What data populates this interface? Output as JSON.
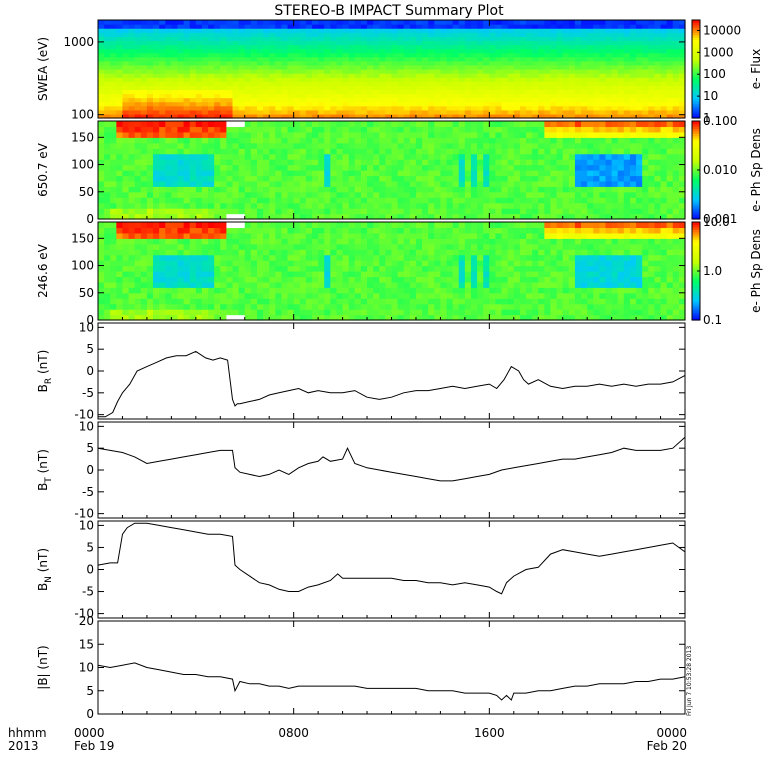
{
  "title": "STEREO-B IMPACT Summary Plot",
  "stamp": "Fri Jun  7 10:53:28 2013",
  "footer": {
    "time_units": "hhmm",
    "year": "2013",
    "x_ticks": [
      {
        "t": 0,
        "time": "0000",
        "date": "Feb 19"
      },
      {
        "t": 8,
        "time": "0800",
        "date": ""
      },
      {
        "t": 16,
        "time": "1600",
        "date": ""
      },
      {
        "t": 24,
        "time": "0000",
        "date": "Feb 20"
      }
    ]
  },
  "colors": {
    "rainbow": [
      "#0000ff",
      "#00c8ff",
      "#00ff64",
      "#c8ff00",
      "#ffff00",
      "#ff0000"
    ]
  },
  "chart_data": [
    {
      "type": "heatmap",
      "id": "swea",
      "ylabel": "SWEA (eV)",
      "y_scale": "log",
      "ylim": [
        90,
        2000
      ],
      "y_ticks": [
        {
          "v": 100,
          "label": "100"
        },
        {
          "v": 1000,
          "label": "1000"
        }
      ],
      "colorbar": {
        "label": "e- Flux",
        "scale": "log",
        "range": [
          1,
          30000
        ],
        "ticks": [
          {
            "v": 1,
            "label": "1"
          },
          {
            "v": 10,
            "label": "10"
          },
          {
            "v": 100,
            "label": "100"
          },
          {
            "v": 1000,
            "label": "1000"
          },
          {
            "v": 10000,
            "label": "10000"
          }
        ]
      }
    },
    {
      "type": "heatmap",
      "id": "pad650",
      "ylabel": "650.7 eV",
      "ylim": [
        0,
        180
      ],
      "y_ticks": [
        {
          "v": 0,
          "label": "0"
        },
        {
          "v": 50,
          "label": "50"
        },
        {
          "v": 100,
          "label": "100"
        },
        {
          "v": 150,
          "label": "150"
        }
      ],
      "colorbar": {
        "label": "e- Ph Sp Dens",
        "scale": "log",
        "range": [
          0.001,
          0.1
        ],
        "ticks": [
          {
            "v": 0.001,
            "label": "0.001"
          },
          {
            "v": 0.01,
            "label": "0.010"
          },
          {
            "v": 0.1,
            "label": "0.100"
          }
        ]
      }
    },
    {
      "type": "heatmap",
      "id": "pad246",
      "ylabel": "246.6 eV",
      "ylim": [
        0,
        180
      ],
      "y_ticks": [
        {
          "v": 0,
          "label": "0"
        },
        {
          "v": 50,
          "label": "50"
        },
        {
          "v": 100,
          "label": "100"
        },
        {
          "v": 150,
          "label": "150"
        }
      ],
      "colorbar": {
        "label": "e- Ph Sp Dens",
        "scale": "log",
        "range": [
          0.1,
          10
        ],
        "ticks": [
          {
            "v": 0.1,
            "label": "0.1"
          },
          {
            "v": 1,
            "label": "1.0"
          },
          {
            "v": 10,
            "label": "10.0"
          }
        ]
      }
    },
    {
      "type": "line",
      "id": "br",
      "ylabel_main": "B",
      "ylabel_sub": "R",
      "ylabel_unit": " (nT)",
      "ylim": [
        -11,
        11
      ],
      "y_ticks": [
        {
          "v": -10,
          "label": "-10"
        },
        {
          "v": -5,
          "label": "-5"
        },
        {
          "v": 0,
          "label": "0"
        },
        {
          "v": 5,
          "label": "5"
        },
        {
          "v": 10,
          "label": "10"
        }
      ],
      "x": [
        0,
        0.3,
        0.6,
        0.8,
        1.0,
        1.3,
        1.6,
        2.0,
        2.4,
        2.8,
        3.2,
        3.6,
        4.0,
        4.4,
        4.7,
        5.0,
        5.3,
        5.5,
        5.6,
        5.7,
        5.8,
        6.2,
        6.6,
        7.0,
        7.4,
        7.8,
        8.2,
        8.6,
        9.0,
        9.5,
        10.0,
        10.5,
        11.0,
        11.5,
        12.0,
        12.5,
        13.0,
        13.5,
        14.0,
        14.5,
        15.0,
        15.5,
        16.0,
        16.3,
        16.6,
        16.9,
        17.2,
        17.4,
        17.6,
        18.0,
        18.5,
        19.0,
        19.5,
        20.0,
        20.5,
        21.0,
        21.5,
        22.0,
        22.5,
        23.0,
        23.5,
        24.0
      ],
      "y": [
        -10.5,
        -10.5,
        -9.5,
        -7,
        -5,
        -3,
        0,
        1,
        2,
        3,
        3.5,
        3.5,
        4.5,
        3,
        2.5,
        3,
        2.5,
        -6.5,
        -8,
        -7.5,
        -7.5,
        -7,
        -6.5,
        -5.5,
        -5,
        -4.5,
        -4,
        -5,
        -4.5,
        -5,
        -5,
        -4.5,
        -6,
        -6.5,
        -6,
        -5,
        -4.5,
        -4.5,
        -4,
        -3.5,
        -4,
        -3.5,
        -3,
        -4,
        -2,
        1,
        0,
        -2,
        -3,
        -2,
        -3.5,
        -4,
        -3.5,
        -3.5,
        -3,
        -3.5,
        -3,
        -3.5,
        -3,
        -3,
        -2.5,
        -1
      ]
    },
    {
      "type": "line",
      "id": "bt",
      "ylabel_main": "B",
      "ylabel_sub": "T",
      "ylabel_unit": " (nT)",
      "ylim": [
        -11,
        11
      ],
      "y_ticks": [
        {
          "v": -10,
          "label": "-10"
        },
        {
          "v": -5,
          "label": "-5"
        },
        {
          "v": 0,
          "label": "0"
        },
        {
          "v": 5,
          "label": "5"
        },
        {
          "v": 10,
          "label": "10"
        }
      ],
      "x": [
        0,
        0.5,
        1.0,
        1.5,
        2.0,
        2.5,
        3.0,
        3.5,
        4.0,
        4.5,
        5.0,
        5.5,
        5.6,
        5.8,
        6.2,
        6.6,
        7.0,
        7.4,
        7.8,
        8.2,
        8.6,
        9.0,
        9.2,
        9.5,
        10.0,
        10.2,
        10.5,
        11.0,
        11.5,
        12.0,
        12.5,
        13.0,
        13.5,
        14.0,
        14.5,
        15.0,
        15.5,
        16.0,
        16.5,
        17.0,
        17.5,
        18.0,
        18.5,
        19.0,
        19.5,
        20.0,
        20.5,
        21.0,
        21.5,
        22.0,
        22.5,
        23.0,
        23.5,
        24.0
      ],
      "y": [
        5,
        4.5,
        4,
        3,
        1.5,
        2,
        2.5,
        3,
        3.5,
        4,
        4.5,
        4.5,
        0.5,
        -0.5,
        -1,
        -1.5,
        -1,
        0,
        -1,
        0.5,
        1.5,
        2,
        3,
        2,
        2.5,
        5,
        1.5,
        0.5,
        0,
        -0.5,
        -1,
        -1.5,
        -2,
        -2.5,
        -2.5,
        -2,
        -1.5,
        -1,
        0,
        0.5,
        1,
        1.5,
        2,
        2.5,
        2.5,
        3,
        3.5,
        4,
        5,
        4.5,
        4.5,
        4.5,
        5,
        7.5
      ]
    },
    {
      "type": "line",
      "id": "bn",
      "ylabel_main": "B",
      "ylabel_sub": "N",
      "ylabel_unit": " (nT)",
      "ylim": [
        -11,
        11
      ],
      "y_ticks": [
        {
          "v": -10,
          "label": "-10"
        },
        {
          "v": -5,
          "label": "-5"
        },
        {
          "v": 0,
          "label": "0"
        },
        {
          "v": 5,
          "label": "5"
        },
        {
          "v": 10,
          "label": "10"
        }
      ],
      "x": [
        0,
        0.5,
        0.8,
        1.0,
        1.2,
        1.5,
        2.0,
        2.5,
        3.0,
        3.5,
        4.0,
        4.5,
        5.0,
        5.5,
        5.6,
        5.8,
        6.2,
        6.6,
        7.0,
        7.4,
        7.8,
        8.2,
        8.6,
        9.0,
        9.5,
        9.8,
        10.0,
        10.5,
        11.0,
        11.5,
        12.0,
        12.5,
        13.0,
        13.5,
        14.0,
        14.5,
        15.0,
        15.5,
        16.0,
        16.3,
        16.5,
        16.7,
        17.0,
        17.5,
        18.0,
        18.5,
        19.0,
        19.5,
        20.0,
        20.5,
        21.0,
        21.5,
        22.0,
        22.5,
        23.0,
        23.5,
        24.0
      ],
      "y": [
        1,
        1.5,
        1.5,
        8,
        9.5,
        10.5,
        10.5,
        10,
        9.5,
        9,
        8.5,
        8,
        8,
        7.5,
        1,
        0,
        -1.5,
        -3,
        -3.5,
        -4.5,
        -5,
        -5,
        -4,
        -3.5,
        -2.5,
        -1,
        -2,
        -2,
        -2,
        -2,
        -2,
        -2.5,
        -2.5,
        -3,
        -3,
        -3.5,
        -3,
        -3.5,
        -4,
        -5,
        -5.5,
        -3,
        -1.5,
        0,
        0.5,
        3.5,
        4.5,
        4,
        3.5,
        3,
        3.5,
        4,
        4.5,
        5,
        5.5,
        6,
        4
      ]
    },
    {
      "type": "line",
      "id": "bmag",
      "ylabel": "|B| (nT)",
      "ylim": [
        0,
        20
      ],
      "y_ticks": [
        {
          "v": 0,
          "label": "0"
        },
        {
          "v": 5,
          "label": "5"
        },
        {
          "v": 10,
          "label": "10"
        },
        {
          "v": 15,
          "label": "15"
        },
        {
          "v": 20,
          "label": "20"
        }
      ],
      "x": [
        0,
        0.5,
        1.0,
        1.5,
        2.0,
        2.5,
        3.0,
        3.5,
        4.0,
        4.5,
        5.0,
        5.5,
        5.6,
        5.8,
        6.2,
        6.6,
        7.0,
        7.4,
        7.8,
        8.2,
        8.6,
        9.0,
        9.5,
        10.0,
        10.5,
        11.0,
        11.5,
        12.0,
        12.5,
        13.0,
        13.5,
        14.0,
        14.5,
        15.0,
        15.5,
        16.0,
        16.3,
        16.5,
        16.7,
        16.9,
        17.0,
        17.5,
        18.0,
        18.5,
        19.0,
        19.5,
        20.0,
        20.5,
        21.0,
        21.5,
        22.0,
        22.5,
        23.0,
        23.5,
        24.0
      ],
      "y": [
        10.5,
        10,
        10.5,
        11,
        10,
        9.5,
        9,
        8.5,
        8.5,
        8,
        8,
        7.5,
        5,
        7,
        6.5,
        6.5,
        6,
        6,
        5.5,
        6,
        6,
        6,
        6,
        6,
        6,
        5.5,
        5.5,
        5.5,
        5.5,
        5.5,
        5,
        5,
        5,
        4.5,
        4.5,
        4.5,
        4,
        3,
        4,
        3,
        4.5,
        4.5,
        5,
        5,
        5.5,
        6,
        6,
        6.5,
        6.5,
        6.5,
        7,
        7,
        7.5,
        7.5,
        8
      ]
    }
  ]
}
